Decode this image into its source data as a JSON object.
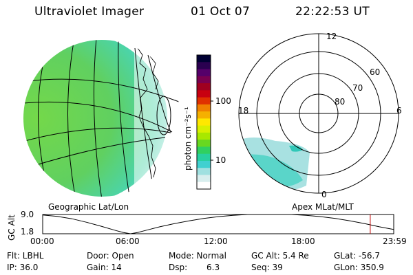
{
  "header": {
    "instrument": "Ultraviolet Imager",
    "date": "01 Oct 07",
    "time": "22:22:53 UT"
  },
  "left_panel": {
    "caption": "Geographic Lat/Lon"
  },
  "right_panel": {
    "caption": "Apex MLat/MLT",
    "mlt_labels": {
      "top": "12",
      "right": "6",
      "bottom": "0",
      "left": "18"
    },
    "lat_labels": [
      "60",
      "70",
      "80"
    ]
  },
  "colorbar": {
    "unit": "photon cm⁻²s⁻¹",
    "tick_labels": [
      "100",
      "10"
    ],
    "colors": [
      "#000033",
      "#2a0050",
      "#55006a",
      "#7a0050",
      "#a00020",
      "#c80010",
      "#e03000",
      "#f08000",
      "#f5b000",
      "#ffe800",
      "#d8f000",
      "#a8e800",
      "#68d820",
      "#30d060",
      "#28d0a0",
      "#40d0d0",
      "#a0e0e0",
      "#d8eeee",
      "#ffffff"
    ]
  },
  "altitude_plot": {
    "ylabel": "GC Alt",
    "y_ticks": [
      "9.0",
      "1.8"
    ],
    "x_ticks": [
      "00:00",
      "06:00",
      "12:00",
      "18:00",
      "23:59"
    ],
    "current_time_marker_color": "#c00000",
    "trace": {
      "hours": [
        0,
        1,
        2,
        3,
        4,
        5,
        5.5,
        6,
        6.5,
        7,
        8,
        9,
        10,
        11,
        12,
        13,
        14,
        15,
        16,
        17,
        18,
        19,
        20,
        21,
        22,
        23,
        23.98
      ],
      "gc_alt_re": [
        8.8,
        8.3,
        7.4,
        6.1,
        4.6,
        3.0,
        2.3,
        1.8,
        2.3,
        3.0,
        4.4,
        5.6,
        6.6,
        7.5,
        8.2,
        8.7,
        9.0,
        9.1,
        9.1,
        9.0,
        8.7,
        8.2,
        7.5,
        6.6,
        5.6,
        4.4,
        3.4
      ]
    },
    "current_time_hours": 22.38
  },
  "status": {
    "filter": "Flt: LBHL",
    "ip": "IP: 36.0",
    "door": "Door: Open",
    "gain": "Gain: 14",
    "mode": "Mode: Normal",
    "dsp_label": "Dsp:",
    "dsp_value": "6.3",
    "gc_alt": "GC Alt: 5.4 Re",
    "seq": "Seq: 39",
    "glat": "GLat: -56.7",
    "glon": "GLon: 350.9"
  }
}
